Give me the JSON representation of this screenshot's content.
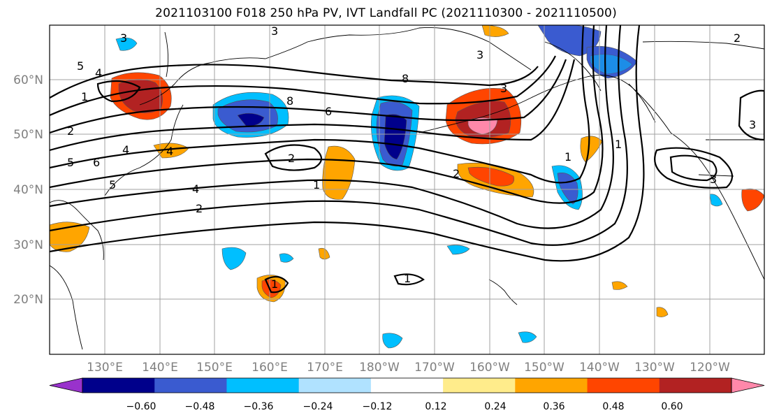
{
  "title": "2021103100 F018 250 hPa PV, IVT Landfall PC (2021110300 - 2021110500)",
  "map": {
    "lat_labels": [
      "60°N",
      "50°N",
      "40°N",
      "30°N",
      "20°N"
    ],
    "lon_labels": [
      "130°E",
      "140°E",
      "150°E",
      "160°E",
      "170°E",
      "180°W",
      "170°W",
      "160°W",
      "150°W",
      "140°W",
      "130°W",
      "120°W"
    ],
    "contour_labels": [
      "3",
      "5",
      "4",
      "1",
      "2",
      "5",
      "6",
      "4",
      "5",
      "2",
      "2",
      "6",
      "8",
      "8",
      "1",
      "4",
      "2",
      "3",
      "3",
      "3",
      "1",
      "3",
      "1",
      "3",
      "1",
      "4",
      "1",
      "2"
    ],
    "colors": {
      "land_outline": "#000000",
      "grid": "#a0a0a0"
    }
  },
  "colorbar": {
    "tick_labels": [
      "−0.60",
      "−0.48",
      "−0.36",
      "−0.24",
      "−0.12",
      "0.12",
      "0.24",
      "0.36",
      "0.48",
      "0.60"
    ],
    "colors": [
      "#9932cc",
      "#00008b",
      "#3a5bd0",
      "#00bfff",
      "#b0e2ff",
      "#ffffff",
      "#ffec8b",
      "#ffa500",
      "#ff4500",
      "#b22222",
      "#ff88aa"
    ]
  }
}
